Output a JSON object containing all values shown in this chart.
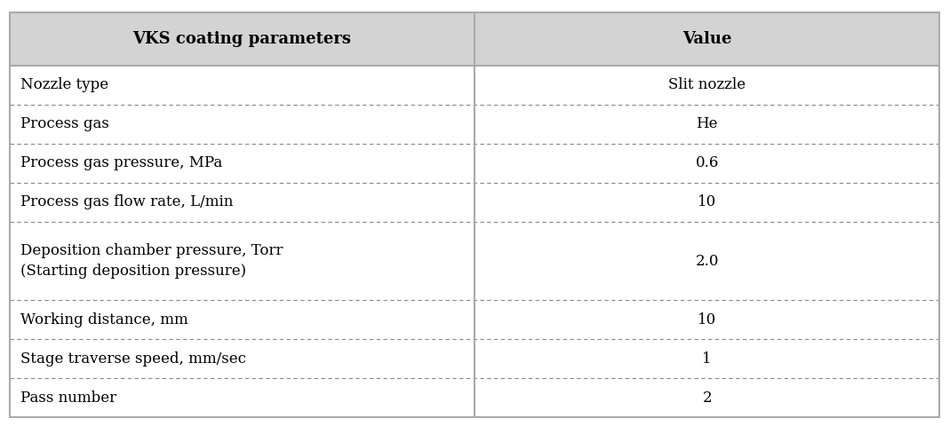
{
  "title_col1": "VKS coating parameters",
  "title_col2": "Value",
  "rows": [
    [
      "Nozzle type",
      "Slit nozzle"
    ],
    [
      "Process gas",
      "He"
    ],
    [
      "Process gas pressure, MPa",
      "0.6"
    ],
    [
      "Process gas flow rate, L/min",
      "10"
    ],
    [
      "Deposition chamber pressure, Torr\n(Starting deposition pressure)",
      "2.0"
    ],
    [
      "Working distance, mm",
      "10"
    ],
    [
      "Stage traverse speed, mm/sec",
      "1"
    ],
    [
      "Pass number",
      "2"
    ]
  ],
  "header_bg": "#d3d3d3",
  "body_bg": "#ffffff",
  "outer_border_color": "#aaaaaa",
  "divider_color": "#888888",
  "header_font_size": 13,
  "body_font_size": 12,
  "col_split": 0.5,
  "fig_bg": "#ffffff"
}
